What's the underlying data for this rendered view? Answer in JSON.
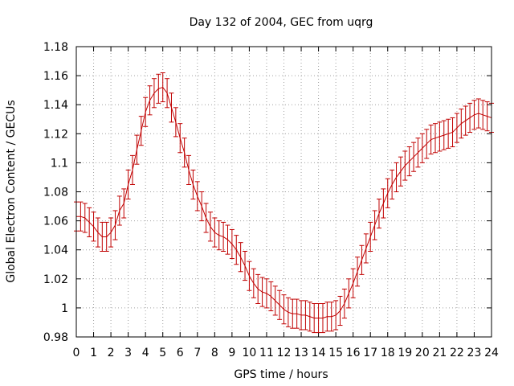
{
  "chart_data": {
    "type": "line",
    "title": "Day 132 of 2004, GEC from uqrg",
    "xlabel": "GPS time / hours",
    "ylabel": "Global Electron Content / GECUs",
    "xlim": [
      0,
      24
    ],
    "ylim": [
      0.98,
      1.18
    ],
    "grid": true,
    "x_ticks": [
      0,
      1,
      2,
      3,
      4,
      5,
      6,
      7,
      8,
      9,
      10,
      11,
      12,
      13,
      14,
      15,
      16,
      17,
      18,
      19,
      20,
      21,
      22,
      23,
      24
    ],
    "x_tick_labels": [
      "0",
      "1",
      "2",
      "3",
      "4",
      "5",
      "6",
      "7",
      "8",
      "9",
      "10",
      "11",
      "12",
      "13",
      "14",
      "15",
      "16",
      "17",
      "18",
      "19",
      "20",
      "21",
      "22",
      "23",
      "24"
    ],
    "y_ticks": [
      0.98,
      1.0,
      1.02,
      1.04,
      1.06,
      1.08,
      1.1,
      1.12,
      1.14,
      1.16,
      1.18
    ],
    "y_tick_labels": [
      "0.98",
      "1",
      "1.02",
      "1.04",
      "1.06",
      "1.08",
      "1.1",
      "1.12",
      "1.14",
      "1.16",
      "1.18"
    ],
    "error": 0.01,
    "series": [
      {
        "name": "GEC",
        "color": "#c00000",
        "x": [
          0,
          0.25,
          0.5,
          0.75,
          1,
          1.25,
          1.5,
          1.75,
          2,
          2.25,
          2.5,
          2.75,
          3,
          3.25,
          3.5,
          3.75,
          4,
          4.25,
          4.5,
          4.75,
          5,
          5.25,
          5.5,
          5.75,
          6,
          6.25,
          6.5,
          6.75,
          7,
          7.25,
          7.5,
          7.75,
          8,
          8.25,
          8.5,
          8.75,
          9,
          9.25,
          9.5,
          9.75,
          10,
          10.25,
          10.5,
          10.75,
          11,
          11.25,
          11.5,
          11.75,
          12,
          12.25,
          12.5,
          12.75,
          13,
          13.25,
          13.5,
          13.75,
          14,
          14.25,
          14.5,
          14.75,
          15,
          15.25,
          15.5,
          15.75,
          16,
          16.25,
          16.5,
          16.75,
          17,
          17.25,
          17.5,
          17.75,
          18,
          18.25,
          18.5,
          18.75,
          19,
          19.25,
          19.5,
          19.75,
          20,
          20.25,
          20.5,
          20.75,
          21,
          21.25,
          21.5,
          21.75,
          22,
          22.25,
          22.5,
          22.75,
          23,
          23.25,
          23.5,
          23.75,
          24
        ],
        "values": [
          1.063,
          1.063,
          1.062,
          1.059,
          1.056,
          1.052,
          1.049,
          1.049,
          1.052,
          1.057,
          1.067,
          1.072,
          1.085,
          1.095,
          1.109,
          1.122,
          1.135,
          1.143,
          1.148,
          1.151,
          1.152,
          1.148,
          1.138,
          1.128,
          1.117,
          1.107,
          1.095,
          1.085,
          1.077,
          1.07,
          1.062,
          1.056,
          1.052,
          1.05,
          1.049,
          1.047,
          1.044,
          1.04,
          1.035,
          1.029,
          1.022,
          1.017,
          1.013,
          1.011,
          1.01,
          1.008,
          1.005,
          1.002,
          0.999,
          0.997,
          0.996,
          0.996,
          0.995,
          0.995,
          0.994,
          0.993,
          0.993,
          0.993,
          0.994,
          0.994,
          0.995,
          0.998,
          1.003,
          1.01,
          1.017,
          1.025,
          1.033,
          1.041,
          1.049,
          1.057,
          1.065,
          1.072,
          1.079,
          1.085,
          1.09,
          1.094,
          1.098,
          1.101,
          1.104,
          1.107,
          1.11,
          1.113,
          1.116,
          1.117,
          1.118,
          1.119,
          1.12,
          1.121,
          1.124,
          1.127,
          1.129,
          1.131,
          1.133,
          1.134,
          1.133,
          1.132,
          1.131
        ]
      }
    ]
  }
}
